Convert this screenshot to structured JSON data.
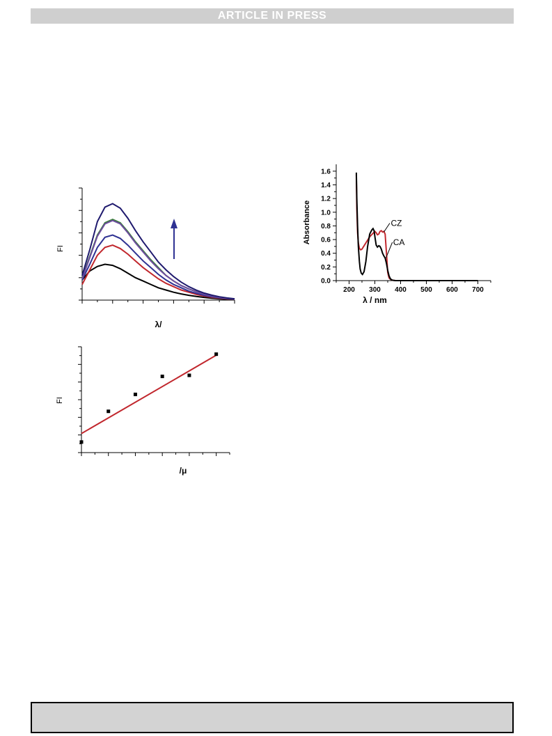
{
  "banner": {
    "text": "ARTICLE IN PRESS"
  },
  "footer": {
    "text": ""
  },
  "chart_data": [
    {
      "type": "line",
      "title": "",
      "xlabel": "λ/",
      "ylabel": "FI",
      "arrow_color": "#2e3192",
      "x": [
        0.0,
        0.05,
        0.1,
        0.15,
        0.2,
        0.25,
        0.3,
        0.35,
        0.4,
        0.45,
        0.5,
        0.55,
        0.6,
        0.65,
        0.7,
        0.75,
        0.8,
        0.85,
        0.9,
        0.95,
        1.0
      ],
      "series": [
        {
          "color": "#000000",
          "values": [
            0.18,
            0.26,
            0.3,
            0.32,
            0.31,
            0.28,
            0.24,
            0.2,
            0.17,
            0.14,
            0.11,
            0.09,
            0.07,
            0.055,
            0.043,
            0.032,
            0.024,
            0.017,
            0.012,
            0.008,
            0.005
          ]
        },
        {
          "color": "#c1272d",
          "values": [
            0.14,
            0.27,
            0.4,
            0.47,
            0.49,
            0.46,
            0.41,
            0.35,
            0.29,
            0.24,
            0.19,
            0.15,
            0.12,
            0.09,
            0.07,
            0.05,
            0.036,
            0.025,
            0.017,
            0.011,
            0.007
          ]
        },
        {
          "color": "#2e3192",
          "values": [
            0.18,
            0.32,
            0.47,
            0.56,
            0.58,
            0.55,
            0.49,
            0.42,
            0.35,
            0.29,
            0.23,
            0.18,
            0.14,
            0.11,
            0.08,
            0.06,
            0.043,
            0.03,
            0.02,
            0.013,
            0.008
          ]
        },
        {
          "color": "#3a7d3a",
          "values": [
            0.2,
            0.39,
            0.58,
            0.69,
            0.72,
            0.69,
            0.61,
            0.52,
            0.44,
            0.36,
            0.29,
            0.22,
            0.17,
            0.13,
            0.1,
            0.075,
            0.054,
            0.037,
            0.025,
            0.016,
            0.01
          ]
        },
        {
          "color": "#6d4c9f",
          "values": [
            0.19,
            0.38,
            0.57,
            0.68,
            0.71,
            0.68,
            0.6,
            0.51,
            0.43,
            0.35,
            0.28,
            0.22,
            0.17,
            0.13,
            0.1,
            0.073,
            0.052,
            0.036,
            0.024,
            0.016,
            0.01
          ]
        },
        {
          "color": "#1f1a6e",
          "values": [
            0.22,
            0.45,
            0.7,
            0.83,
            0.86,
            0.82,
            0.73,
            0.62,
            0.52,
            0.43,
            0.34,
            0.27,
            0.21,
            0.16,
            0.12,
            0.088,
            0.063,
            0.044,
            0.03,
            0.019,
            0.012
          ]
        }
      ]
    },
    {
      "type": "scatter",
      "title": "",
      "xlabel": "/μ",
      "ylabel": "FI",
      "x": [
        0,
        1,
        2,
        3,
        4,
        5
      ],
      "y": [
        0.1,
        0.39,
        0.55,
        0.72,
        0.73,
        0.93
      ],
      "fit": {
        "color": "#c1272d",
        "x": [
          0,
          5
        ],
        "y": [
          0.18,
          0.92
        ]
      }
    },
    {
      "type": "line",
      "title": "",
      "xlabel": "λ / nm",
      "ylabel": "Absorbance",
      "xlim": [
        150,
        750
      ],
      "ylim": [
        0.0,
        1.7
      ],
      "xticks": [
        "200",
        "300",
        "400",
        "500",
        "600",
        "700"
      ],
      "yticks": [
        "0.0",
        "0.2",
        "0.4",
        "0.6",
        "0.8",
        "1.0",
        "1.2",
        "1.4",
        "1.6"
      ],
      "series": [
        {
          "name": "CZ",
          "color": "#c1272d",
          "x": [
            228,
            230,
            233,
            236,
            240,
            245,
            250,
            260,
            270,
            280,
            290,
            300,
            305,
            310,
            315,
            320,
            325,
            330,
            335,
            340,
            345,
            350,
            355,
            360,
            365,
            370,
            380,
            400,
            500,
            600,
            700
          ],
          "y": [
            1.55,
            1.05,
            0.7,
            0.55,
            0.47,
            0.45,
            0.46,
            0.52,
            0.58,
            0.64,
            0.68,
            0.72,
            0.7,
            0.67,
            0.68,
            0.72,
            0.73,
            0.71,
            0.72,
            0.68,
            0.4,
            0.12,
            0.04,
            0.02,
            0.01,
            0.005,
            0.0,
            0.0,
            0.0,
            0.0,
            0.0
          ]
        },
        {
          "name": "CA",
          "color": "#000000",
          "x": [
            228,
            230,
            233,
            236,
            240,
            243,
            247,
            252,
            258,
            265,
            272,
            280,
            288,
            293,
            297,
            301,
            305,
            310,
            315,
            320,
            325,
            330,
            335,
            340,
            345,
            350,
            355,
            360,
            365,
            370,
            380,
            400,
            500,
            600,
            700
          ],
          "y": [
            1.58,
            1.2,
            0.8,
            0.5,
            0.28,
            0.17,
            0.11,
            0.09,
            0.13,
            0.28,
            0.5,
            0.68,
            0.74,
            0.76,
            0.73,
            0.62,
            0.52,
            0.49,
            0.51,
            0.5,
            0.46,
            0.4,
            0.36,
            0.33,
            0.25,
            0.15,
            0.07,
            0.03,
            0.01,
            0.005,
            0.0,
            0.0,
            0.0,
            0.0,
            0.0
          ]
        }
      ]
    }
  ]
}
